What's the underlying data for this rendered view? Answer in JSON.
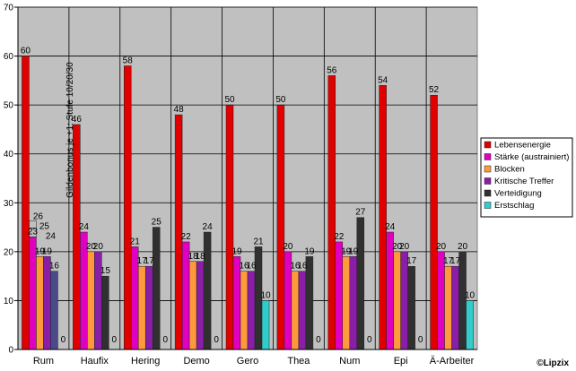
{
  "chart_data": {
    "type": "bar",
    "categories": [
      "Rum",
      "Haufix",
      "Hering",
      "Demo",
      "Gero",
      "Thea",
      "Num",
      "Epi",
      "Ä-Arbeiter"
    ],
    "ylim": [
      0,
      70
    ],
    "yticks": [
      0,
      10,
      20,
      30,
      40,
      50,
      60,
      70
    ],
    "grid": true,
    "legend_position": "right",
    "series": [
      {
        "name": "Lebensenergie",
        "color": "#e00000",
        "values": [
          60,
          46,
          58,
          48,
          50,
          50,
          56,
          54,
          52
        ]
      },
      {
        "name": "Stärke (austrainiert)",
        "color": "#e000c0",
        "values": [
          23,
          24,
          21,
          22,
          19,
          20,
          22,
          24,
          20
        ]
      },
      {
        "name": "Blocken",
        "color": "#ff9a3c",
        "values": [
          19,
          20,
          17,
          18,
          16,
          16,
          19,
          20,
          17
        ]
      },
      {
        "name": "Kritische Treffer",
        "color": "#8a1ea8",
        "values": [
          19,
          20,
          17,
          18,
          16,
          16,
          19,
          20,
          17
        ]
      },
      {
        "name": "Verteidigung",
        "color": "#303030",
        "values": [
          16,
          15,
          25,
          24,
          21,
          19,
          27,
          17,
          20
        ]
      },
      {
        "name": "Erstschlag",
        "color": "#33cccc",
        "values": [
          0,
          0,
          0,
          0,
          10,
          0,
          0,
          0,
          10
        ]
      }
    ],
    "rum_overrides": {
      "verteidigung_color": "#4a4a8a",
      "extra_labels": [
        "26",
        "25",
        "24"
      ]
    },
    "annotation": "Gildenbonus je +1: Stufe 10/20/30"
  },
  "copyright": "©Lipzix"
}
